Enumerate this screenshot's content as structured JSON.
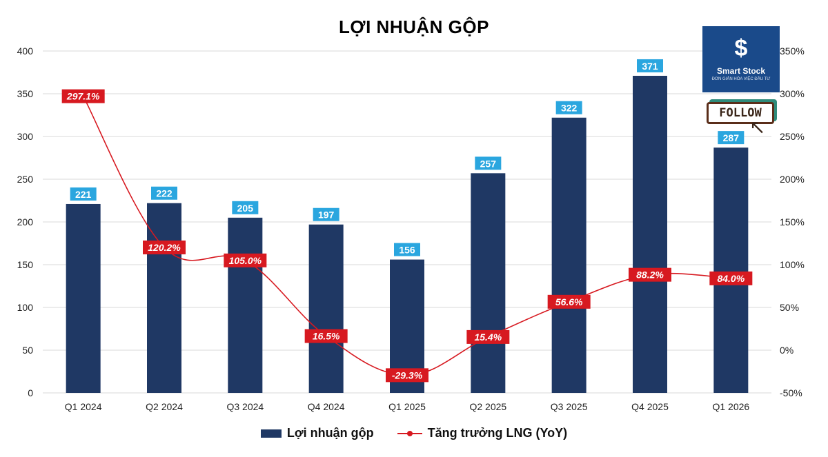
{
  "title": "LỢI NHUẬN GỘP",
  "logo": {
    "name": "Smart Stock",
    "tagline": "ĐƠN GIẢN HÓA VIỆC ĐẦU TƯ",
    "icon": "smart-stock-logo-icon"
  },
  "follow_label": "FOLLOW",
  "colors": {
    "bar": "#1f3864",
    "bar_label_bg": "#2aa6df",
    "line": "#d71920",
    "pct_label_bg": "#d71920",
    "grid": "#d9d9d9"
  },
  "chart_data": {
    "type": "bar",
    "title": "LỢI NHUẬN GỘP",
    "categories": [
      "Q1 2024",
      "Q2 2024",
      "Q3 2024",
      "Q4 2024",
      "Q1 2025",
      "Q2 2025",
      "Q3 2025",
      "Q4 2025",
      "Q1 2026"
    ],
    "series": [
      {
        "name": "Lợi nhuận gộp",
        "type": "bar",
        "axis": "left",
        "values": [
          221,
          222,
          205,
          197,
          156,
          257,
          322,
          371,
          287
        ],
        "labels": [
          "221",
          "222",
          "205",
          "197",
          "156",
          "257",
          "322",
          "371",
          "287"
        ]
      },
      {
        "name": "Tăng trưởng LNG (YoY)",
        "type": "line",
        "axis": "right",
        "values": [
          297.1,
          120.2,
          105.0,
          16.5,
          -29.3,
          15.4,
          56.6,
          88.2,
          84.0
        ],
        "labels": [
          "297.1%",
          "120.2%",
          "105.0%",
          "16.5%",
          "-29.3%",
          "15.4%",
          "56.6%",
          "88.2%",
          "84.0%"
        ]
      }
    ],
    "y_left": {
      "range": [
        0,
        400
      ],
      "ticks": [
        "0",
        "50",
        "100",
        "150",
        "200",
        "250",
        "300",
        "350",
        "400"
      ]
    },
    "y_right": {
      "range": [
        -50,
        350
      ],
      "ticks": [
        "-50%",
        "0%",
        "50%",
        "100%",
        "150%",
        "200%",
        "250%",
        "300%",
        "350%"
      ]
    },
    "grid": true,
    "legend_position": "bottom"
  }
}
